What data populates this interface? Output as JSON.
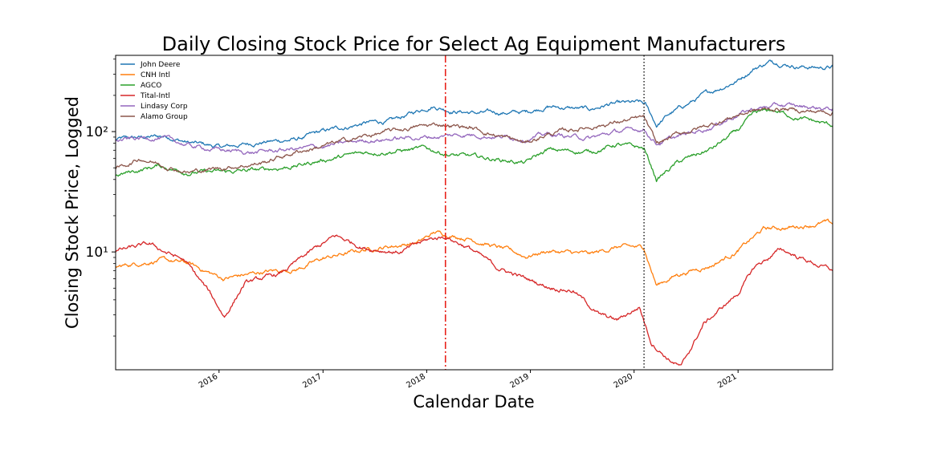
{
  "chart_data": {
    "type": "line",
    "title": "Daily Closing Stock Price for Select Ag Equipment Manufacturers",
    "xlabel": "Calendar Date",
    "ylabel": "Closing Stock Price, Logged",
    "yscale": "log",
    "xlim": [
      "2015-01-02",
      "2021-11-30"
    ],
    "ylim": [
      1.05,
      430
    ],
    "xticks": [
      "2016",
      "2017",
      "2018",
      "2019",
      "2020",
      "2021"
    ],
    "yticks": [
      "10¹",
      "10²"
    ],
    "grid": false,
    "legend_position": "top-left",
    "vertical_lines": [
      {
        "date": "2018-03-08",
        "color": "#e8231b",
        "style": "dashdot"
      },
      {
        "date": "2020-02-05",
        "color": "#000000",
        "style": "dotted"
      }
    ],
    "series": [
      {
        "name": "John Deere",
        "color": "#1f77b4",
        "points": [
          [
            "2015-01-02",
            86
          ],
          [
            "2015-07-01",
            92
          ],
          [
            "2015-09-15",
            81
          ],
          [
            "2016-01-15",
            74
          ],
          [
            "2016-06-01",
            82
          ],
          [
            "2016-10-01",
            86
          ],
          [
            "2017-01-01",
            100
          ],
          [
            "2017-06-01",
            118
          ],
          [
            "2017-09-01",
            122
          ],
          [
            "2018-01-20",
            165
          ],
          [
            "2018-04-01",
            150
          ],
          [
            "2018-07-01",
            142
          ],
          [
            "2018-12-15",
            145
          ],
          [
            "2019-03-01",
            162
          ],
          [
            "2019-08-01",
            152
          ],
          [
            "2019-10-01",
            168
          ],
          [
            "2020-01-20",
            172
          ],
          [
            "2020-02-10",
            165
          ],
          [
            "2020-03-20",
            112
          ],
          [
            "2020-05-01",
            138
          ],
          [
            "2020-09-01",
            200
          ],
          [
            "2020-12-31",
            268
          ],
          [
            "2021-03-01",
            340
          ],
          [
            "2021-05-01",
            385
          ],
          [
            "2021-08-01",
            350
          ],
          [
            "2021-10-15",
            340
          ],
          [
            "2021-11-30",
            345
          ]
        ]
      },
      {
        "name": "CNH Intl",
        "color": "#ff7f0e",
        "points": [
          [
            "2015-01-02",
            7.5
          ],
          [
            "2015-06-01",
            8.6
          ],
          [
            "2015-09-15",
            8.0
          ],
          [
            "2016-01-15",
            6.0
          ],
          [
            "2016-06-01",
            6.8
          ],
          [
            "2016-10-01",
            7.2
          ],
          [
            "2017-01-01",
            8.8
          ],
          [
            "2017-06-01",
            10.5
          ],
          [
            "2017-12-01",
            12.0
          ],
          [
            "2018-02-01",
            14.5
          ],
          [
            "2018-06-01",
            13.0
          ],
          [
            "2018-12-15",
            9.2
          ],
          [
            "2019-03-01",
            10.2
          ],
          [
            "2019-08-01",
            9.5
          ],
          [
            "2019-11-01",
            11.0
          ],
          [
            "2020-02-05",
            10.8
          ],
          [
            "2020-03-20",
            5.3
          ],
          [
            "2020-06-01",
            6.5
          ],
          [
            "2020-10-01",
            7.8
          ],
          [
            "2020-12-31",
            10.2
          ],
          [
            "2021-04-01",
            15.5
          ],
          [
            "2021-07-01",
            16.0
          ],
          [
            "2021-11-01",
            17.5
          ],
          [
            "2021-11-30",
            17.0
          ]
        ]
      },
      {
        "name": "AGCO",
        "color": "#2ca02c",
        "points": [
          [
            "2015-01-02",
            43
          ],
          [
            "2015-06-01",
            52
          ],
          [
            "2015-09-15",
            46
          ],
          [
            "2016-01-15",
            46
          ],
          [
            "2016-06-01",
            48
          ],
          [
            "2016-10-01",
            52
          ],
          [
            "2017-01-01",
            58
          ],
          [
            "2017-06-01",
            67
          ],
          [
            "2018-01-01",
            72
          ],
          [
            "2018-04-01",
            64
          ],
          [
            "2018-10-01",
            58
          ],
          [
            "2018-12-15",
            55
          ],
          [
            "2019-03-01",
            70
          ],
          [
            "2019-08-01",
            68
          ],
          [
            "2019-11-01",
            78
          ],
          [
            "2020-02-05",
            72
          ],
          [
            "2020-03-20",
            40
          ],
          [
            "2020-06-01",
            55
          ],
          [
            "2020-10-01",
            72
          ],
          [
            "2020-12-31",
            102
          ],
          [
            "2021-03-01",
            140
          ],
          [
            "2021-05-01",
            150
          ],
          [
            "2021-08-01",
            130
          ],
          [
            "2021-11-30",
            112
          ]
        ]
      },
      {
        "name": "Tital-Intl",
        "color": "#d62728",
        "points": [
          [
            "2015-01-02",
            10.2
          ],
          [
            "2015-05-01",
            11.5
          ],
          [
            "2015-09-01",
            8.5
          ],
          [
            "2015-12-01",
            4.5
          ],
          [
            "2016-01-20",
            2.9
          ],
          [
            "2016-04-01",
            5.5
          ],
          [
            "2016-08-01",
            6.5
          ],
          [
            "2016-12-01",
            10.5
          ],
          [
            "2017-02-15",
            13.5
          ],
          [
            "2017-06-01",
            10.8
          ],
          [
            "2017-10-01",
            10.0
          ],
          [
            "2018-01-01",
            12.5
          ],
          [
            "2018-03-08",
            13.5
          ],
          [
            "2018-06-01",
            10.8
          ],
          [
            "2018-09-01",
            7.5
          ],
          [
            "2018-12-15",
            6.0
          ],
          [
            "2019-03-01",
            5.2
          ],
          [
            "2019-06-01",
            4.8
          ],
          [
            "2019-09-01",
            3.0
          ],
          [
            "2019-11-01",
            2.7
          ],
          [
            "2020-01-20",
            3.5
          ],
          [
            "2020-03-01",
            1.8
          ],
          [
            "2020-05-01",
            1.3
          ],
          [
            "2020-06-15",
            1.1
          ],
          [
            "2020-09-01",
            2.5
          ],
          [
            "2020-12-31",
            4.5
          ],
          [
            "2021-03-01",
            7.5
          ],
          [
            "2021-06-01",
            10.5
          ],
          [
            "2021-09-01",
            8.5
          ],
          [
            "2021-11-30",
            7.0
          ]
        ]
      },
      {
        "name": "Lindasy Corp",
        "color": "#9467bd",
        "points": [
          [
            "2015-01-02",
            84
          ],
          [
            "2015-06-01",
            90
          ],
          [
            "2015-10-01",
            75
          ],
          [
            "2016-01-15",
            70
          ],
          [
            "2016-05-01",
            67
          ],
          [
            "2016-10-01",
            72
          ],
          [
            "2017-01-01",
            75
          ],
          [
            "2017-06-01",
            85
          ],
          [
            "2018-01-01",
            90
          ],
          [
            "2018-06-01",
            95
          ],
          [
            "2018-12-15",
            88
          ],
          [
            "2019-03-01",
            95
          ],
          [
            "2019-08-01",
            88
          ],
          [
            "2019-11-01",
            100
          ],
          [
            "2020-02-05",
            105
          ],
          [
            "2020-03-20",
            80
          ],
          [
            "2020-06-01",
            90
          ],
          [
            "2020-10-01",
            110
          ],
          [
            "2020-12-31",
            140
          ],
          [
            "2021-03-01",
            155
          ],
          [
            "2021-06-01",
            165
          ],
          [
            "2021-09-01",
            160
          ],
          [
            "2021-11-30",
            155
          ]
        ]
      },
      {
        "name": "Alamo Group",
        "color": "#8c564b",
        "points": [
          [
            "2015-01-02",
            48
          ],
          [
            "2015-04-01",
            60
          ],
          [
            "2015-09-15",
            46
          ],
          [
            "2016-01-15",
            50
          ],
          [
            "2016-06-01",
            55
          ],
          [
            "2016-10-01",
            68
          ],
          [
            "2017-01-01",
            76
          ],
          [
            "2017-06-01",
            92
          ],
          [
            "2017-12-01",
            110
          ],
          [
            "2018-03-01",
            115
          ],
          [
            "2018-06-01",
            108
          ],
          [
            "2018-12-15",
            80
          ],
          [
            "2019-03-01",
            95
          ],
          [
            "2019-08-01",
            110
          ],
          [
            "2019-11-01",
            120
          ],
          [
            "2020-02-05",
            130
          ],
          [
            "2020-03-20",
            78
          ],
          [
            "2020-06-01",
            95
          ],
          [
            "2020-10-01",
            115
          ],
          [
            "2020-12-31",
            138
          ],
          [
            "2021-03-01",
            150
          ],
          [
            "2021-06-01",
            155
          ],
          [
            "2021-09-01",
            148
          ],
          [
            "2021-11-30",
            145
          ]
        ]
      }
    ]
  }
}
